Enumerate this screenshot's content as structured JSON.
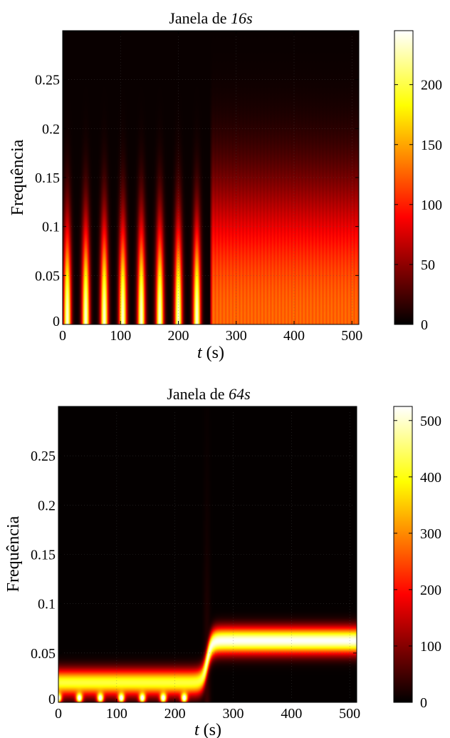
{
  "chart_data": [
    {
      "type": "heatmap",
      "title": "Janela de ",
      "title_math": "16s",
      "xlabel_var": "t",
      "xlabel_unit": "(s)",
      "ylabel": "Frequência",
      "xlim": [
        0,
        512
      ],
      "ylim": [
        0,
        0.3
      ],
      "xticks": [
        0,
        100,
        200,
        300,
        400,
        500
      ],
      "yticks": [
        0,
        0.05,
        0.1,
        0.15,
        0.2,
        0.25
      ],
      "ytick_labels": [
        "0",
        "0.05",
        "0.1",
        "0.15",
        "0.2",
        "0.25"
      ],
      "colorbar": {
        "min": 0,
        "max": 245,
        "ticks": [
          0,
          50,
          100,
          150,
          200
        ]
      },
      "colormap": "hot",
      "grid": true,
      "pattern": {
        "switch_time": 255,
        "left_pulses": [
          8,
          40,
          72,
          104,
          136,
          168,
          200,
          232
        ],
        "left_peak": 235,
        "left_band": 0.095,
        "right_level": 130,
        "right_band": 0.14
      }
    },
    {
      "type": "heatmap",
      "title": "Janela de ",
      "title_math": "64s",
      "xlabel_var": "t",
      "xlabel_unit": "(s)",
      "ylabel": "Frequência",
      "xlim": [
        0,
        512
      ],
      "ylim": [
        0,
        0.3
      ],
      "xticks": [
        0,
        100,
        200,
        300,
        400,
        500
      ],
      "yticks": [
        0,
        0.05,
        0.1,
        0.15,
        0.2,
        0.25
      ],
      "ytick_labels": [
        "0",
        "0.05",
        "0.1",
        "0.15",
        "0.2",
        "0.25"
      ],
      "colorbar": {
        "min": 0,
        "max": 525,
        "ticks": [
          0,
          100,
          200,
          300,
          400,
          500
        ]
      },
      "colormap": "hot",
      "grid": true,
      "pattern": {
        "switch_time": 255,
        "low_band_center": 0.02,
        "low_band_peak": 420,
        "high_band_center": 0.0625,
        "high_band_peak": 520,
        "dots": [
          0,
          36,
          72,
          108,
          144,
          180,
          216
        ]
      }
    }
  ]
}
